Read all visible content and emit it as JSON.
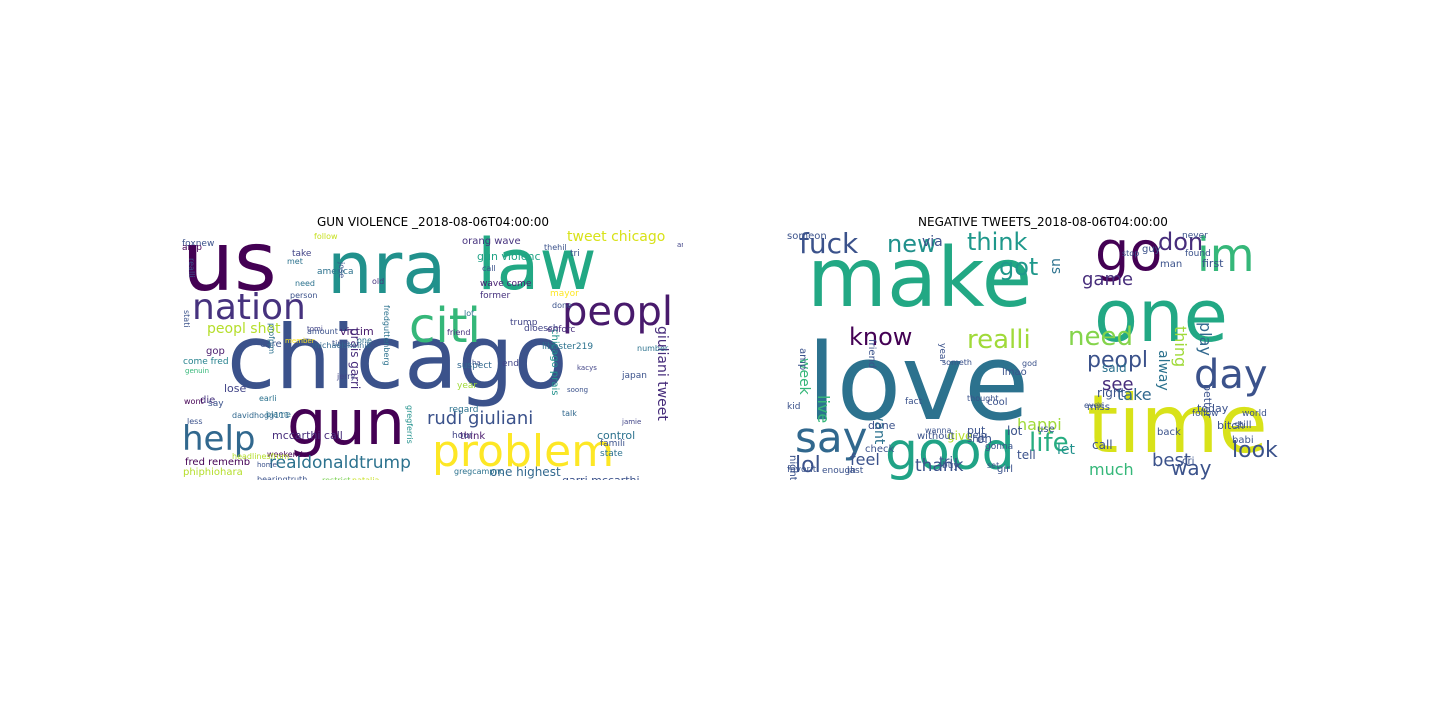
{
  "clouds": [
    {
      "title": "GUN VIOLENCE _2018-08-06T04:00:00",
      "words": [
        {
          "t": "us",
          "c": "#440154"
        },
        {
          "t": "nra",
          "c": "#21918c"
        },
        {
          "t": "law",
          "c": "#22a884"
        },
        {
          "t": "chicago",
          "c": "#3b528b"
        },
        {
          "t": "nation",
          "c": "#46327e"
        },
        {
          "t": "citi",
          "c": "#35b779"
        },
        {
          "t": "peopl",
          "c": "#481a6c"
        },
        {
          "t": "gun",
          "c": "#440154"
        },
        {
          "t": "help",
          "c": "#31688e"
        },
        {
          "t": "problem",
          "c": "#fde725"
        },
        {
          "t": "realdonaldtrump",
          "c": "#2c728e"
        },
        {
          "t": "rudi giuliani",
          "c": "#3b528b"
        },
        {
          "t": "giuliani tweet",
          "c": "#472d7b"
        },
        {
          "t": "peopl shot",
          "c": "#b5de2b"
        },
        {
          "t": "tweet chicago",
          "c": "#d8e219"
        },
        {
          "t": "victim",
          "c": "#481a6c"
        },
        {
          "t": "mccarthi call",
          "c": "#472d7b"
        },
        {
          "t": "garri mccarthi",
          "c": "#3b528b"
        },
        {
          "t": "one highest",
          "c": "#31688e"
        },
        {
          "t": "control",
          "c": "#2c728e"
        },
        {
          "t": "lose",
          "c": "#414487"
        },
        {
          "t": "fred rememb",
          "c": "#440154"
        },
        {
          "t": "phiphiohara",
          "c": "#b5de2b"
        },
        {
          "t": "bearingtruth",
          "c": "#3b528b"
        },
        {
          "t": "gun violenc",
          "c": "#20a386"
        },
        {
          "t": "orang wave",
          "c": "#46327e"
        },
        {
          "t": "chicago prais",
          "c": "#21918c"
        },
        {
          "t": "prais garri",
          "c": "#472d7b"
        },
        {
          "t": "think",
          "c": "#481a6c"
        },
        {
          "t": "state",
          "c": "#2c728e"
        },
        {
          "t": "hour",
          "c": "#414487"
        },
        {
          "t": "famili",
          "c": "#3b528b"
        },
        {
          "t": "restrict",
          "c": "#7ad151"
        },
        {
          "t": "natalia",
          "c": "#c7e020"
        },
        {
          "t": "gregcampnc",
          "c": "#2c728e"
        },
        {
          "t": "trump",
          "c": "#414487"
        },
        {
          "t": "friend",
          "c": "#46327e"
        },
        {
          "t": "enforc",
          "c": "#472d7b"
        },
        {
          "t": "mayor",
          "c": "#fde725"
        },
        {
          "t": "wave come",
          "c": "#482173"
        },
        {
          "t": "libbster219",
          "c": "#2c728e"
        },
        {
          "t": "care",
          "c": "#3b528b"
        },
        {
          "t": "gop",
          "c": "#481a6c"
        },
        {
          "t": "die",
          "c": "#46327e"
        },
        {
          "t": "say",
          "c": "#3b528b"
        },
        {
          "t": "wont",
          "c": "#440154"
        },
        {
          "t": "weekend",
          "c": "#440154"
        },
        {
          "t": "amount",
          "c": "#3b528b"
        },
        {
          "t": "davidhogg111",
          "c": "#31688e"
        },
        {
          "t": "fredguttenberg",
          "c": "#2c728e"
        },
        {
          "t": "gregferris",
          "c": "#21918c"
        },
        {
          "t": "come fred",
          "c": "#26828e"
        },
        {
          "t": "foxnew",
          "c": "#3b528b"
        },
        {
          "t": "take",
          "c": "#414487"
        },
        {
          "t": "america",
          "c": "#2c728e"
        },
        {
          "t": "dloesch",
          "c": "#414487"
        },
        {
          "t": "former",
          "c": "#46327e"
        },
        {
          "t": "call",
          "c": "#3b528b"
        },
        {
          "t": "suspect",
          "c": "#31688e"
        },
        {
          "t": "end",
          "c": "#414487"
        },
        {
          "t": "year",
          "c": "#a0da39"
        },
        {
          "t": "regard",
          "c": "#2c728e"
        },
        {
          "t": "talk",
          "c": "#31688e"
        },
        {
          "t": "japan",
          "c": "#3b528b"
        },
        {
          "t": "number",
          "c": "#2c728e"
        },
        {
          "t": "tri",
          "c": "#3b528b"
        },
        {
          "t": "amp",
          "c": "#440154"
        },
        {
          "t": "realli",
          "c": "#3b528b"
        },
        {
          "t": "met",
          "c": "#2c728e"
        },
        {
          "t": "person",
          "c": "#3b528b"
        },
        {
          "t": "need",
          "c": "#2c728e"
        },
        {
          "t": "done",
          "c": "#3b528b"
        },
        {
          "t": "lot",
          "c": "#2c728e"
        },
        {
          "t": "jamie",
          "c": "#414487"
        },
        {
          "t": "ha",
          "c": "#3b528b"
        },
        {
          "t": "jose",
          "c": "#3b528b"
        },
        {
          "t": "old",
          "c": "#46327e"
        },
        {
          "t": "earli",
          "c": "#2c728e"
        },
        {
          "t": "blame",
          "c": "#2c728e"
        },
        {
          "t": "less",
          "c": "#3b528b"
        },
        {
          "t": "home",
          "c": "#3b528b"
        },
        {
          "t": "headlinesfrom",
          "c": "#b5de2b"
        },
        {
          "t": "profpjm",
          "c": "#2c728e"
        },
        {
          "t": "thehil",
          "c": "#3b528b"
        },
        {
          "t": "americ",
          "c": "#414487"
        },
        {
          "t": "time",
          "c": "#3b528b"
        },
        {
          "t": "one",
          "c": "#2c728e"
        },
        {
          "t": "tomi",
          "c": "#414487"
        },
        {
          "t": "member",
          "c": "#fde725"
        },
        {
          "t": "follow",
          "c": "#c7e020"
        },
        {
          "t": "michaelskolnik",
          "c": "#31688e"
        },
        {
          "t": "stati",
          "c": "#3b528b"
        },
        {
          "t": "genuin",
          "c": "#35b779"
        },
        {
          "t": "jerry",
          "c": "#414487"
        },
        {
          "t": "soong",
          "c": "#3b528b"
        },
        {
          "t": "kacys",
          "c": "#414487"
        }
      ]
    },
    {
      "title": "NEGATIVE TWEETS_2018-08-06T04:00:00",
      "words": [
        {
          "t": "make",
          "c": "#22a884"
        },
        {
          "t": "love",
          "c": "#2c728e"
        },
        {
          "t": "time",
          "c": "#d8e219"
        },
        {
          "t": "one",
          "c": "#22a884"
        },
        {
          "t": "im",
          "c": "#35b779"
        },
        {
          "t": "go",
          "c": "#440154"
        },
        {
          "t": "good",
          "c": "#20a386"
        },
        {
          "t": "say",
          "c": "#31688e"
        },
        {
          "t": "day",
          "c": "#3b528b"
        },
        {
          "t": "realli",
          "c": "#a0da39"
        },
        {
          "t": "need",
          "c": "#84d44b"
        },
        {
          "t": "fuck",
          "c": "#3b528b"
        },
        {
          "t": "know",
          "c": "#440154"
        },
        {
          "t": "think",
          "c": "#1f988b"
        },
        {
          "t": "got",
          "c": "#1f988b"
        },
        {
          "t": "peopl",
          "c": "#3b528b"
        },
        {
          "t": "new",
          "c": "#21918c"
        },
        {
          "t": "don",
          "c": "#472d7b"
        },
        {
          "t": "lol",
          "c": "#3b528b"
        },
        {
          "t": "life",
          "c": "#27ad81"
        },
        {
          "t": "happi",
          "c": "#a0da39"
        },
        {
          "t": "see",
          "c": "#472d7b"
        },
        {
          "t": "take",
          "c": "#31688e"
        },
        {
          "t": "way",
          "c": "#3b528b"
        },
        {
          "t": "look",
          "c": "#3b528b"
        },
        {
          "t": "best",
          "c": "#3b528b"
        },
        {
          "t": "much",
          "c": "#35b779"
        },
        {
          "t": "thank",
          "c": "#3b528b"
        },
        {
          "t": "feel",
          "c": "#3b528b"
        },
        {
          "t": "play",
          "c": "#31688e"
        },
        {
          "t": "thing",
          "c": "#a0da39"
        },
        {
          "t": "alway",
          "c": "#2c728e"
        },
        {
          "t": "live",
          "c": "#35b779"
        },
        {
          "t": "want",
          "c": "#2c728e"
        },
        {
          "t": "week",
          "c": "#35b779"
        },
        {
          "t": "game",
          "c": "#472d7b"
        },
        {
          "t": "via",
          "c": "#3b528b"
        },
        {
          "t": "us",
          "c": "#2c728e"
        },
        {
          "t": "said",
          "c": "#2c728e"
        },
        {
          "t": "let",
          "c": "#21918c"
        },
        {
          "t": "call",
          "c": "#3b528b"
        },
        {
          "t": "even",
          "c": "#3b528b"
        },
        {
          "t": "tri",
          "c": "#3b528b"
        },
        {
          "t": "give",
          "c": "#b5de2b"
        },
        {
          "t": "right",
          "c": "#3b528b"
        },
        {
          "t": "back",
          "c": "#3b528b"
        },
        {
          "t": "cri",
          "c": "#3b528b"
        },
        {
          "t": "still",
          "c": "#3b528b"
        },
        {
          "t": "today",
          "c": "#3b528b"
        },
        {
          "t": "better",
          "c": "#3b528b"
        },
        {
          "t": "bitch",
          "c": "#3b528b"
        },
        {
          "t": "babi",
          "c": "#3b528b"
        },
        {
          "t": "first",
          "c": "#3b528b"
        },
        {
          "t": "guy",
          "c": "#3b528b"
        },
        {
          "t": "man",
          "c": "#3b528b"
        },
        {
          "t": "tell",
          "c": "#3b528b"
        },
        {
          "t": "lot",
          "c": "#3b528b"
        },
        {
          "t": "oh",
          "c": "#3b528b"
        },
        {
          "t": "put",
          "c": "#3b528b"
        },
        {
          "t": "done",
          "c": "#3b528b"
        },
        {
          "t": "night",
          "c": "#3b528b"
        },
        {
          "t": "someon",
          "c": "#3b528b"
        },
        {
          "t": "kid",
          "c": "#3b528b"
        },
        {
          "t": "amp",
          "c": "#3b528b"
        },
        {
          "t": "friend",
          "c": "#3b528b"
        },
        {
          "t": "check",
          "c": "#3b528b"
        },
        {
          "t": "without",
          "c": "#3b528b"
        },
        {
          "t": "shit",
          "c": "#3b528b"
        },
        {
          "t": "cool",
          "c": "#3b528b"
        },
        {
          "t": "lmao",
          "c": "#3b528b"
        },
        {
          "t": "use",
          "c": "#3b528b"
        },
        {
          "t": "girl",
          "c": "#3b528b"
        },
        {
          "t": "help",
          "c": "#3b528b"
        },
        {
          "t": "miss",
          "c": "#3b528b"
        },
        {
          "t": "never",
          "c": "#3b528b"
        },
        {
          "t": "found",
          "c": "#3b528b"
        },
        {
          "t": "follow",
          "c": "#3b528b"
        },
        {
          "t": "world",
          "c": "#3b528b"
        },
        {
          "t": "favorit",
          "c": "#3b528b"
        },
        {
          "t": "enough",
          "c": "#3b528b"
        },
        {
          "t": "last",
          "c": "#3b528b"
        },
        {
          "t": "buy",
          "c": "#3b528b"
        },
        {
          "t": "fact",
          "c": "#3b528b"
        },
        {
          "t": "everi",
          "c": "#3b528b"
        },
        {
          "t": "stop",
          "c": "#3b528b"
        },
        {
          "t": "someth",
          "c": "#3b528b"
        },
        {
          "t": "year",
          "c": "#3b528b"
        },
        {
          "t": "god",
          "c": "#3b528b"
        },
        {
          "t": "thought",
          "c": "#3b528b"
        },
        {
          "t": "wanna",
          "c": "#3b528b"
        },
        {
          "t": "set",
          "c": "#3b528b"
        },
        {
          "t": "gonna",
          "c": "#3b528b"
        }
      ]
    }
  ]
}
